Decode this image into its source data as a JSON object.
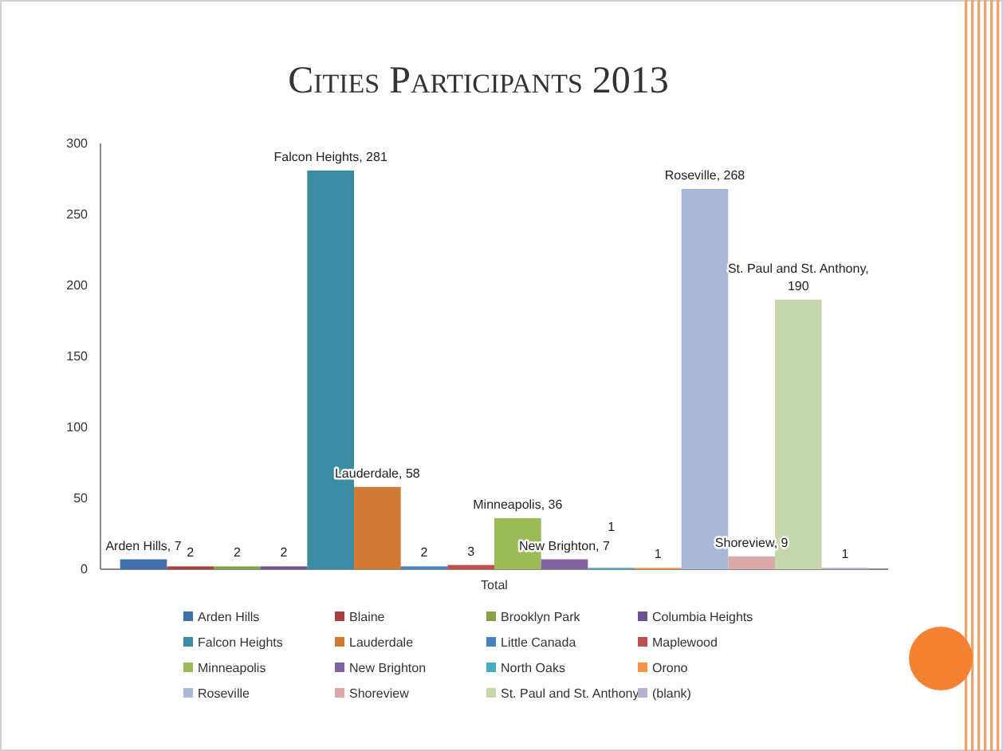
{
  "chart_data": {
    "type": "bar",
    "title": "Cities Participants 2013",
    "categories": [
      "Total"
    ],
    "ylim": [
      0,
      300
    ],
    "yticks": [
      0,
      50,
      100,
      150,
      200,
      250,
      300
    ],
    "grid": false,
    "legend": "bottom",
    "series": [
      {
        "name": "Arden Hills",
        "color": "#3f6fa8",
        "values": [
          7
        ],
        "value_labels": [
          "Arden Hills, 7"
        ]
      },
      {
        "name": "Blaine",
        "color": "#a84040",
        "values": [
          2
        ],
        "value_labels": [
          "2"
        ]
      },
      {
        "name": "Brooklyn Park",
        "color": "#86a344",
        "values": [
          2
        ],
        "value_labels": [
          "2"
        ]
      },
      {
        "name": "Columbia Heights",
        "color": "#6c5391",
        "values": [
          2
        ],
        "value_labels": [
          "2"
        ]
      },
      {
        "name": "Falcon Heights",
        "color": "#3b8ba3",
        "values": [
          281
        ],
        "value_labels": [
          "Falcon Heights, 281"
        ]
      },
      {
        "name": "Lauderdale",
        "color": "#d07a35",
        "values": [
          58
        ],
        "value_labels": [
          "Lauderdale, 58"
        ]
      },
      {
        "name": "Little Canada",
        "color": "#4a7fc0",
        "values": [
          2
        ],
        "value_labels": [
          "2"
        ]
      },
      {
        "name": "Maplewood",
        "color": "#c0504d",
        "values": [
          3
        ],
        "value_labels": [
          "3"
        ]
      },
      {
        "name": "Minneapolis",
        "color": "#9bbb59",
        "values": [
          36
        ],
        "value_labels": [
          "Minneapolis, 36"
        ]
      },
      {
        "name": "New Brighton",
        "color": "#8064a2",
        "values": [
          7
        ],
        "value_labels": [
          "New Brighton, 7"
        ]
      },
      {
        "name": "North Oaks",
        "color": "#4bacc6",
        "values": [
          1
        ],
        "value_labels": [
          "1"
        ]
      },
      {
        "name": "Orono",
        "color": "#f79646",
        "values": [
          1
        ],
        "value_labels": [
          "1"
        ]
      },
      {
        "name": "Roseville",
        "color": "#aab9d8",
        "values": [
          268
        ],
        "value_labels": [
          "Roseville, 268"
        ]
      },
      {
        "name": "Shoreview",
        "color": "#dba9a8",
        "values": [
          9
        ],
        "value_labels": [
          "Shoreview, 9"
        ]
      },
      {
        "name": "St. Paul and St. Anthony",
        "color": "#c6d7ae",
        "values": [
          190
        ],
        "value_labels": [
          "St. Paul and St. Anthony, 190"
        ]
      },
      {
        "name": "(blank)",
        "color": "#b9b0cf",
        "values": [
          1
        ],
        "value_labels": [
          "1"
        ]
      }
    ]
  }
}
